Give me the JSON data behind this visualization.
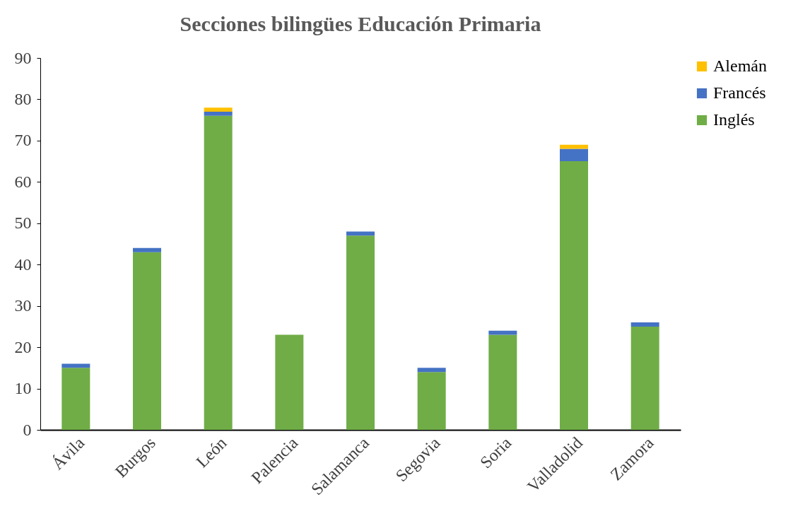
{
  "chart_data": {
    "type": "bar",
    "title": "Secciones bilingües Educación Primaria",
    "stacked": true,
    "categories": [
      "Ávila",
      "Burgos",
      "León",
      "Palencia",
      "Salamanca",
      "Segovia",
      "Soria",
      "Valladolid",
      "Zamora"
    ],
    "series": [
      {
        "name": "Inglés",
        "color": "#70ad47",
        "values": [
          15,
          43,
          76,
          23,
          47,
          14,
          23,
          65,
          25
        ]
      },
      {
        "name": "Francés",
        "color": "#4472c4",
        "values": [
          1,
          1,
          1,
          0,
          1,
          1,
          1,
          3,
          1
        ]
      },
      {
        "name": "Alemán",
        "color": "#ffc000",
        "values": [
          0,
          0,
          1,
          0,
          0,
          0,
          0,
          1,
          0
        ]
      }
    ],
    "ylim": [
      0,
      90
    ],
    "yticks": [
      0,
      10,
      20,
      30,
      40,
      50,
      60,
      70,
      80,
      90
    ],
    "grid": false,
    "legend": "right"
  }
}
